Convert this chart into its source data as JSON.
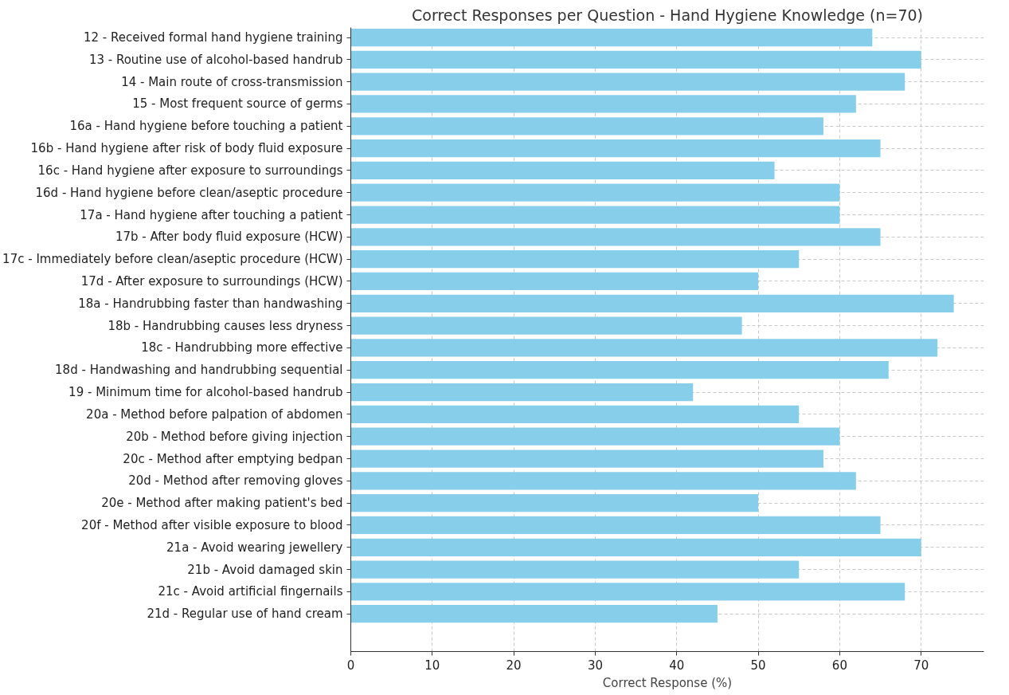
{
  "chart_data": {
    "type": "bar",
    "orientation": "horizontal",
    "title": "Correct Responses per Question - Hand Hygiene Knowledge (n=70)",
    "xlabel": "Correct Response (%)",
    "categories": [
      "12 - Received formal hand hygiene training",
      "13 - Routine use of alcohol-based handrub",
      "14 - Main route of cross-transmission",
      "15 - Most frequent source of germs",
      "16a - Hand hygiene before touching a patient",
      "16b - Hand hygiene after risk of body fluid exposure",
      "16c - Hand hygiene after exposure to surroundings",
      "16d - Hand hygiene before clean/aseptic procedure",
      "17a - Hand hygiene after touching a patient",
      "17b - After body fluid exposure (HCW)",
      "17c - Immediately before clean/aseptic procedure (HCW)",
      "17d - After exposure to surroundings (HCW)",
      "18a - Handrubbing faster than handwashing",
      "18b - Handrubbing causes less dryness",
      "18c - Handrubbing more effective",
      "18d - Handwashing and handrubbing sequential",
      "19 - Minimum time for alcohol-based handrub",
      "20a - Method before palpation of abdomen",
      "20b - Method before giving injection",
      "20c - Method after emptying bedpan",
      "20d - Method after removing gloves",
      "20e - Method after making patient's bed",
      "20f - Method after visible exposure to blood",
      "21a - Avoid wearing jewellery",
      "21b - Avoid damaged skin",
      "21c - Avoid artificial fingernails",
      "21d - Regular use of hand cream"
    ],
    "values": [
      64,
      70,
      68,
      62,
      58,
      65,
      52,
      60,
      60,
      65,
      55,
      50,
      74,
      48,
      72,
      66,
      42,
      55,
      60,
      58,
      62,
      50,
      65,
      70,
      55,
      68,
      45
    ],
    "color": "#87ceeb",
    "xlim": [
      0,
      77.7
    ],
    "xticks": [
      0,
      10,
      20,
      30,
      40,
      50,
      60,
      70
    ],
    "grid": true
  }
}
